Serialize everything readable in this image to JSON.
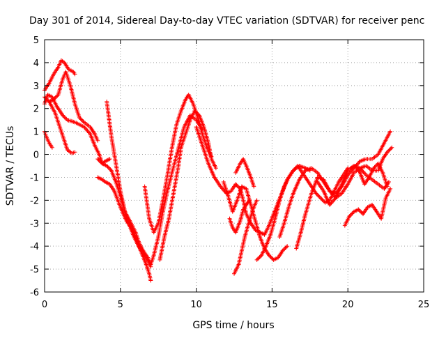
{
  "chart_data": {
    "type": "scatter",
    "title": "Day 301 of 2014, Sidereal Day-to-day VTEC variation (SDTVAR) for receiver penc",
    "xlabel": "GPS time / hours",
    "ylabel": "SDTVAR / TECUs",
    "xlim": [
      0,
      25
    ],
    "ylim": [
      -6,
      5
    ],
    "xticks": [
      0,
      5,
      10,
      15,
      20,
      25
    ],
    "yticks": [
      -6,
      -5,
      -4,
      -3,
      -2,
      -1,
      0,
      1,
      2,
      3,
      4,
      5
    ],
    "grid": true,
    "marker": "+",
    "color": "#ff0000",
    "series": [
      {
        "x": [
          0.0,
          0.1,
          0.3,
          0.5
        ],
        "y": [
          1.0,
          0.8,
          0.5,
          0.3
        ]
      },
      {
        "x": [
          0.0,
          0.3,
          0.7,
          1.0,
          1.3,
          1.5,
          1.8,
          2.0
        ],
        "y": [
          2.5,
          2.3,
          1.8,
          1.2,
          0.6,
          0.2,
          0.05,
          0.1
        ]
      },
      {
        "x": [
          0.0,
          0.2,
          0.5,
          0.8,
          1.2,
          1.5,
          2.0,
          2.6,
          3.0,
          3.3,
          3.6,
          3.8,
          4.0,
          4.3
        ],
        "y": [
          2.2,
          2.6,
          2.5,
          2.1,
          1.7,
          1.5,
          1.4,
          1.2,
          0.9,
          0.4,
          0.0,
          -0.4,
          -0.3,
          -0.2
        ]
      },
      {
        "x": [
          0.0,
          0.3,
          0.6,
          0.9,
          1.1,
          1.3,
          1.6,
          1.9,
          2.0
        ],
        "y": [
          2.8,
          3.1,
          3.5,
          3.8,
          4.1,
          4.0,
          3.7,
          3.6,
          3.5
        ]
      },
      {
        "x": [
          0.3,
          0.6,
          0.9,
          1.2,
          1.4,
          1.7,
          2.0,
          2.3,
          2.6,
          3.0,
          3.3,
          3.5
        ],
        "y": [
          2.3,
          2.4,
          2.6,
          3.3,
          3.6,
          3.0,
          2.2,
          1.6,
          1.4,
          1.2,
          0.9,
          0.6
        ]
      },
      {
        "x": [
          3.5,
          3.8,
          4.0,
          4.3,
          4.6,
          5.0,
          5.4,
          5.8,
          6.1,
          6.4,
          6.7,
          6.9,
          7.0
        ],
        "y": [
          -1.0,
          -1.1,
          -1.2,
          -1.3,
          -1.6,
          -2.3,
          -2.9,
          -3.3,
          -3.8,
          -4.3,
          -4.8,
          -5.2,
          -5.5
        ]
      },
      {
        "x": [
          3.5,
          3.8,
          4.1,
          4.4,
          4.7,
          5.0,
          5.3,
          5.7,
          6.0,
          6.2,
          6.5,
          6.8,
          7.0,
          7.2,
          7.5,
          7.8,
          8.1,
          8.4,
          8.8,
          9.2,
          9.6,
          10.0,
          10.4
        ],
        "y": [
          -0.2,
          -0.4,
          -0.5,
          -0.7,
          -1.2,
          -1.8,
          -2.5,
          -3.0,
          -3.4,
          -3.8,
          -4.2,
          -4.5,
          -4.8,
          -4.4,
          -3.6,
          -2.5,
          -1.6,
          -0.8,
          0.2,
          1.2,
          1.7,
          1.5,
          1.1
        ]
      },
      {
        "x": [
          4.1,
          4.4,
          4.7,
          5.0,
          5.3,
          5.6,
          5.9,
          6.2,
          6.5,
          6.8,
          7.0
        ],
        "y": [
          2.3,
          0.8,
          -0.4,
          -1.6,
          -2.5,
          -3.1,
          -3.6,
          -4.0,
          -4.3,
          -4.6,
          -4.9
        ]
      },
      {
        "x": [
          6.6,
          6.9,
          7.2,
          7.5,
          7.8,
          8.1,
          8.4,
          8.7,
          9.0,
          9.3,
          9.5,
          9.8,
          10.1,
          10.4,
          10.7,
          11.0
        ],
        "y": [
          -1.4,
          -2.8,
          -3.4,
          -3.0,
          -2.0,
          -0.9,
          0.3,
          1.3,
          1.9,
          2.4,
          2.6,
          2.2,
          1.6,
          0.9,
          0.3,
          -0.1
        ]
      },
      {
        "x": [
          7.6,
          7.9,
          8.2,
          8.5,
          8.8,
          9.0,
          9.3,
          9.6,
          9.9,
          10.2,
          10.5,
          10.8,
          11.0,
          11.3
        ],
        "y": [
          -4.6,
          -3.6,
          -2.8,
          -1.7,
          -0.6,
          0.3,
          0.9,
          1.5,
          1.9,
          1.7,
          1.2,
          0.5,
          -0.2,
          -0.6
        ]
      },
      {
        "x": [
          10.0,
          10.4,
          10.8,
          11.2,
          11.6,
          12.0,
          12.3,
          12.6,
          12.9,
          13.1,
          13.3,
          13.6,
          13.9,
          14.2,
          14.5,
          14.8,
          15.1,
          15.4,
          15.7,
          16.0,
          16.4,
          16.8,
          17.2,
          17.5
        ],
        "y": [
          1.2,
          0.4,
          -0.4,
          -1.0,
          -1.4,
          -1.7,
          -1.6,
          -1.3,
          -1.5,
          -2.0,
          -2.6,
          -3.0,
          -3.3,
          -3.4,
          -3.5,
          -3.1,
          -2.6,
          -2.1,
          -1.6,
          -1.1,
          -0.7,
          -0.5,
          -0.6,
          -0.7
        ]
      },
      {
        "x": [
          11.8,
          12.1,
          12.4,
          12.7,
          13.0,
          13.3,
          13.6,
          13.9,
          14.2,
          14.5,
          14.8,
          15.1,
          15.4,
          15.7,
          16.0
        ],
        "y": [
          -1.2,
          -1.8,
          -2.5,
          -2.0,
          -1.4,
          -1.5,
          -2.2,
          -2.9,
          -3.6,
          -4.1,
          -4.4,
          -4.6,
          -4.5,
          -4.2,
          -4.0
        ]
      },
      {
        "x": [
          12.2,
          12.4,
          12.6,
          12.9,
          13.1,
          13.3,
          13.5
        ],
        "y": [
          -2.8,
          -3.2,
          -3.4,
          -2.9,
          -2.4,
          -2.2,
          -2.0
        ]
      },
      {
        "x": [
          12.5,
          12.8,
          13.0,
          13.2,
          13.5,
          13.8,
          14.0
        ],
        "y": [
          -5.2,
          -4.8,
          -4.2,
          -3.6,
          -2.9,
          -2.3,
          -2.0
        ]
      },
      {
        "x": [
          12.6,
          12.9,
          13.1,
          13.3,
          13.6,
          13.8
        ],
        "y": [
          -0.8,
          -0.4,
          -0.2,
          -0.5,
          -1.0,
          -1.4
        ]
      },
      {
        "x": [
          14.0,
          14.3,
          14.6,
          14.9,
          15.2,
          15.5,
          15.8,
          16.1,
          16.4,
          16.7,
          17.0,
          17.3,
          17.6,
          17.9,
          18.2,
          18.5,
          18.8,
          19.1,
          19.4,
          19.7,
          20.0
        ],
        "y": [
          -4.6,
          -4.4,
          -4.0,
          -3.5,
          -2.8,
          -2.0,
          -1.4,
          -1.0,
          -0.7,
          -0.5,
          -0.8,
          -1.1,
          -1.4,
          -1.7,
          -1.9,
          -2.1,
          -2.0,
          -1.6,
          -1.2,
          -0.9,
          -0.6
        ]
      },
      {
        "x": [
          15.5,
          15.8,
          16.1,
          16.4,
          16.8,
          17.2,
          17.6,
          18.0,
          18.4,
          18.8,
          19.2,
          19.6,
          20.0,
          20.4,
          20.8,
          21.2,
          21.6,
          22.0,
          22.4,
          22.8
        ],
        "y": [
          -3.6,
          -3.0,
          -2.3,
          -1.7,
          -1.1,
          -0.7,
          -0.6,
          -0.8,
          -1.2,
          -1.6,
          -1.7,
          -1.4,
          -0.9,
          -0.6,
          -0.3,
          -0.2,
          -0.2,
          0.0,
          0.5,
          1.0
        ]
      },
      {
        "x": [
          16.6,
          16.9,
          17.2,
          17.6,
          18.0,
          18.4,
          18.8,
          19.2,
          19.6,
          20.0,
          20.4,
          20.8,
          21.2,
          21.6,
          22.0,
          22.3,
          22.6,
          22.9
        ],
        "y": [
          -4.1,
          -3.4,
          -2.6,
          -1.7,
          -1.0,
          -1.1,
          -1.6,
          -1.9,
          -1.7,
          -1.3,
          -0.8,
          -0.6,
          -0.5,
          -0.7,
          -0.7,
          -0.2,
          0.1,
          0.3
        ]
      },
      {
        "x": [
          18.0,
          18.4,
          18.8,
          19.2,
          19.6,
          20.0,
          20.4,
          20.8,
          21.2,
          21.6,
          22.0,
          22.4,
          22.7
        ],
        "y": [
          -1.2,
          -1.6,
          -2.2,
          -1.9,
          -1.3,
          -0.7,
          -0.5,
          -0.6,
          -0.9,
          -1.1,
          -1.3,
          -1.5,
          -1.2
        ]
      },
      {
        "x": [
          19.8,
          20.1,
          20.4,
          20.7,
          21.0,
          21.3,
          21.6,
          21.9,
          22.2,
          22.5,
          22.8
        ],
        "y": [
          -3.1,
          -2.7,
          -2.5,
          -2.4,
          -2.6,
          -2.3,
          -2.2,
          -2.5,
          -2.8,
          -1.9,
          -1.5
        ]
      },
      {
        "x": [
          20.2,
          20.5,
          20.8,
          21.1,
          21.4,
          21.7,
          22.0,
          22.3,
          22.6
        ],
        "y": [
          -0.6,
          -0.5,
          -0.8,
          -1.3,
          -1.0,
          -0.6,
          -0.4,
          -0.8,
          -1.4
        ]
      }
    ]
  }
}
